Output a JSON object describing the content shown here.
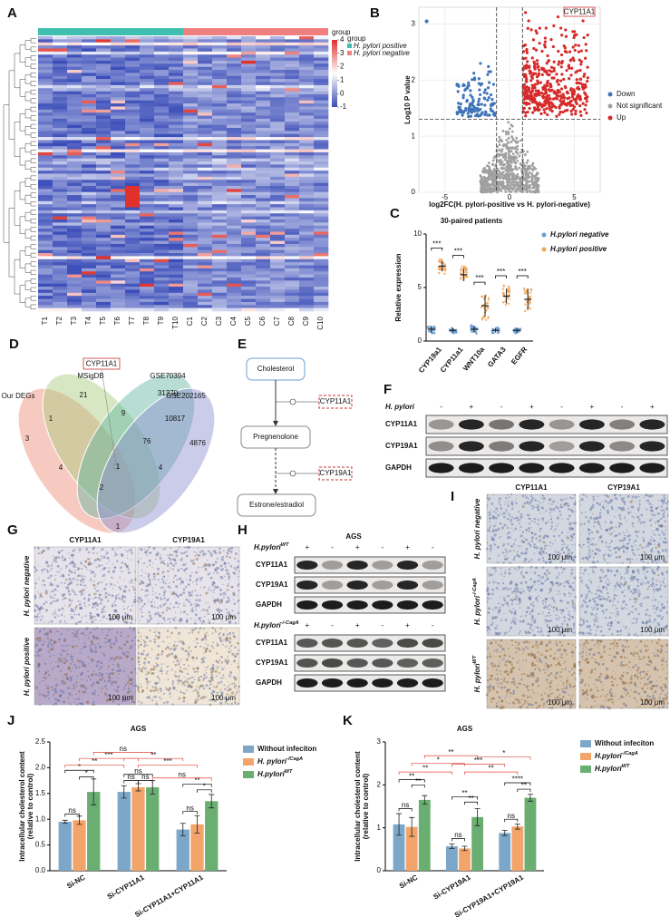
{
  "chart_data": [
    {
      "type": "heatmap",
      "panel": "A",
      "columns": [
        "T1",
        "T2",
        "T3",
        "T4",
        "T5",
        "T6",
        "T7",
        "T8",
        "T9",
        "T10",
        "C1",
        "C2",
        "C3",
        "C4",
        "C5",
        "C6",
        "C7",
        "C8",
        "C9",
        "C10"
      ],
      "group_title": "group",
      "groups": [
        {
          "name": "H. pylori positive",
          "color": "#3fbfb0"
        },
        {
          "name": "H. pylori negative",
          "color": "#f08080"
        }
      ],
      "colorbar_ticks": [
        4,
        3,
        2,
        1,
        0,
        -1
      ],
      "colorbar_colors": [
        "#e0312a",
        "#ffffff",
        "#3a4cb8"
      ]
    },
    {
      "type": "volcano",
      "panel": "B",
      "xlabel": "log2FC(H. pylori-positive vs H. pylori-negative)",
      "ylabel": "Log10 P value",
      "xlim": [
        -7,
        7
      ],
      "xticks": [
        -5,
        0,
        5
      ],
      "ylim": [
        0,
        3.3
      ],
      "yticks": [
        0,
        1,
        2,
        3
      ],
      "thresholds": {
        "x": [
          -1,
          1
        ],
        "y": 1.3
      },
      "legend": [
        {
          "name": "Down",
          "color": "#3f74b8"
        },
        {
          "name": "Not significant",
          "color": "#a0a0a0"
        },
        {
          "name": "Up",
          "color": "#d62a2a"
        }
      ],
      "highlight": "CYP11A1"
    },
    {
      "type": "dot",
      "panel": "C",
      "title": "30-paired patients",
      "ylabel": "Relative expression",
      "categories": [
        "CYP19a1",
        "CYP11a1",
        "WNT10a",
        "GATA3",
        "EGFR"
      ],
      "ylim": [
        0,
        10
      ],
      "yticks": [
        0,
        5,
        10
      ],
      "series": [
        {
          "name": "H.pylori negative",
          "color": "#6a9fd4",
          "values": [
            1.1,
            1.0,
            1.1,
            1.0,
            1.0
          ],
          "errors": [
            0.3,
            0.2,
            0.3,
            0.2,
            0.2
          ]
        },
        {
          "name": "H.pylori positive",
          "color": "#f2a65a",
          "values": [
            7.0,
            6.2,
            3.3,
            4.2,
            3.9
          ],
          "errors": [
            0.5,
            0.6,
            1.0,
            0.7,
            1.0
          ]
        }
      ],
      "significance": [
        "***",
        "***",
        "***",
        "***",
        "***"
      ]
    },
    {
      "type": "bar",
      "panel": "J",
      "title": "AGS",
      "ylabel": [
        "Intracellular cholesterol content",
        "(relative to control)"
      ],
      "categories": [
        "Si-NC",
        "Si-CYP11A1",
        "Si-CYP11A1+CYP11A1"
      ],
      "ylim": [
        0,
        2.5
      ],
      "yticks": [
        {
          "value": 0,
          "label": "0.0"
        },
        0.5,
        {
          "value": 1,
          "label": "1.0"
        },
        1.5,
        {
          "value": 2,
          "label": "2.0"
        },
        2.5
      ],
      "series": [
        {
          "name": "Without infeciton",
          "color": "#7da7c9",
          "values": [
            0.95,
            1.53,
            0.8
          ],
          "errors": [
            0.03,
            0.12,
            0.12
          ]
        },
        {
          "name": "H. pylori",
          "superscript": "-/CagA",
          "color": "#f2a46b",
          "values": [
            0.98,
            1.62,
            0.9
          ],
          "errors": [
            0.08,
            0.07,
            0.17
          ]
        },
        {
          "name": "H.pylori",
          "superscript": "WT",
          "color": "#6aae72",
          "values": [
            1.53,
            1.62,
            1.35
          ],
          "errors": [
            0.25,
            0.13,
            0.13
          ]
        }
      ],
      "annotations": [
        "ns",
        "*",
        "*",
        "ns",
        "ns",
        "ns",
        "ns",
        "*",
        "**",
        "**",
        "***",
        "ns",
        "***",
        "**",
        "ns"
      ]
    },
    {
      "type": "bar",
      "panel": "K",
      "title": "AGS",
      "ylabel": [
        "Intracellular cholesterol content",
        "(relative to control)"
      ],
      "categories": [
        "Si-NC",
        "Si-CYP19A1",
        "Si-CYP19A1+CYP19A1"
      ],
      "ylim": [
        0,
        3
      ],
      "yticks": [
        0,
        1,
        2,
        3
      ],
      "series": [
        {
          "name": "Without infeciton",
          "color": "#7da7c9",
          "values": [
            1.08,
            0.57,
            0.88
          ],
          "errors": [
            0.25,
            0.05,
            0.06
          ]
        },
        {
          "name": "H.pylori",
          "superscript": "-/CagA",
          "color": "#f2a46b",
          "values": [
            1.02,
            0.52,
            1.03
          ],
          "errors": [
            0.22,
            0.05,
            0.06
          ]
        },
        {
          "name": "H.pylori",
          "superscript": "WT",
          "color": "#6aae72",
          "values": [
            1.65,
            1.25,
            1.7
          ],
          "errors": [
            0.1,
            0.2,
            0.08
          ]
        }
      ],
      "annotations": [
        "ns",
        "**",
        "**",
        "ns",
        "**",
        "**",
        "ns",
        "**",
        "****",
        "**",
        "*",
        "**",
        "**",
        "***",
        "*"
      ]
    }
  ],
  "panels": {
    "D": {
      "panel": "D",
      "sets": [
        "MSigDB",
        "GSE70394",
        "Our DEGs",
        "GSE202165"
      ],
      "highlight": "CYP11A1",
      "counts": [
        21,
        31370,
        1,
        9,
        10817,
        3,
        76,
        4876,
        4,
        1,
        4,
        2,
        1
      ]
    },
    "E": {
      "panel": "E",
      "nodes": [
        "Cholesterol",
        "Pregnenolone",
        "Estrone/estradiol"
      ],
      "enzymes": [
        "CYP11A1",
        "CYP19A1"
      ]
    },
    "F": {
      "panel": "F",
      "treatment": "H. pylori",
      "lanes": [
        "-",
        "+",
        "-",
        "+",
        "-",
        "+",
        "-",
        "+"
      ],
      "rows": [
        "CYP11A1",
        "CYP19A1",
        "GAPDH"
      ]
    },
    "G": {
      "panel": "G",
      "columns": [
        "CYP11A1",
        "CYP19A1"
      ],
      "rows": [
        "H. pylori negative",
        "H. pylori positive"
      ],
      "scale": "100 μm"
    },
    "H": {
      "panel": "H",
      "title": "AGS",
      "blocks": [
        {
          "treatment": "H.pylori",
          "superscript": "WT",
          "lanes": [
            "+",
            "-",
            "+",
            "-",
            "+",
            "-"
          ],
          "rows": [
            "CYP11A1",
            "CYP19A1",
            "GAPDH"
          ]
        },
        {
          "treatment": "H.pylori",
          "superscript": "-/-CagA",
          "lanes": [
            "+",
            "-",
            "+",
            "-",
            "+",
            "-"
          ],
          "rows": [
            "CYP11A1",
            "CYP19A1",
            "GAPDH"
          ]
        }
      ]
    },
    "I": {
      "panel": "I",
      "columns": [
        "CYP11A1",
        "CYP19A1"
      ],
      "rows": [
        {
          "name": "H. pylori negative"
        },
        {
          "name": "H. pylori",
          "superscript": "-/-CagA"
        },
        {
          "name": "H. pylori",
          "superscript": "WT"
        }
      ],
      "scale": "100 μm"
    }
  }
}
